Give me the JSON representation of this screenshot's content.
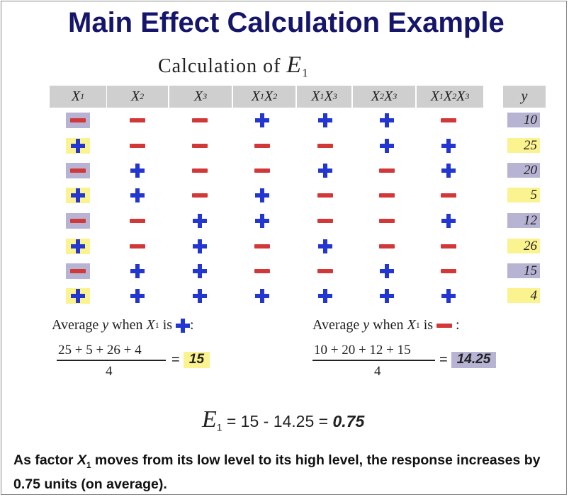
{
  "title": "Main Effect Calculation Example",
  "subtitle": {
    "prefix": "Calculation of",
    "symbol": "E",
    "sub": "1"
  },
  "columns": [
    [
      {
        "v": "X",
        "s": "1"
      }
    ],
    [
      {
        "v": "X",
        "s": "2"
      }
    ],
    [
      {
        "v": "X",
        "s": "3"
      }
    ],
    [
      {
        "v": "X",
        "s": "1"
      },
      {
        "v": " X",
        "s": "2"
      }
    ],
    [
      {
        "v": "X",
        "s": "1"
      },
      {
        "v": " X",
        "s": "3"
      }
    ],
    [
      {
        "v": "X",
        "s": "2"
      },
      {
        "v": " X",
        "s": "3"
      }
    ],
    [
      {
        "v": "X",
        "s": "1"
      },
      {
        "v": "X",
        "s": "2"
      },
      {
        "v": "X",
        "s": "3"
      }
    ]
  ],
  "response_header": "y",
  "rows": [
    {
      "signs": [
        "-",
        "-",
        "-",
        "+",
        "+",
        "+",
        "-"
      ],
      "y": "10"
    },
    {
      "signs": [
        "+",
        "-",
        "-",
        "-",
        "-",
        "+",
        "+"
      ],
      "y": "25"
    },
    {
      "signs": [
        "-",
        "+",
        "-",
        "-",
        "+",
        "-",
        "+"
      ],
      "y": "20"
    },
    {
      "signs": [
        "+",
        "+",
        "-",
        "+",
        "-",
        "-",
        "-"
      ],
      "y": "5"
    },
    {
      "signs": [
        "-",
        "-",
        "+",
        "+",
        "-",
        "-",
        "+"
      ],
      "y": "12"
    },
    {
      "signs": [
        "+",
        "-",
        "+",
        "-",
        "+",
        "-",
        "-"
      ],
      "y": "26"
    },
    {
      "signs": [
        "-",
        "+",
        "+",
        "-",
        "-",
        "+",
        "-"
      ],
      "y": "15"
    },
    {
      "signs": [
        "+",
        "+",
        "+",
        "+",
        "+",
        "+",
        "+"
      ],
      "y": "4"
    }
  ],
  "average_plus": {
    "prefix": "Average",
    "var": "y",
    "when": "when",
    "factor": "X",
    "factor_sub": "1",
    "is": "is",
    "colon": ":",
    "numerator": "25 + 5 + 26 + 4",
    "denominator": "4",
    "eq": "=",
    "result": "15"
  },
  "average_minus": {
    "prefix": "Average",
    "var": "y",
    "when": "when",
    "factor": "X",
    "factor_sub": "1",
    "is": "is",
    "colon": ":",
    "numerator": "10 + 20 + 12 + 15",
    "denominator": "4",
    "eq": "=",
    "result": "14.25"
  },
  "final_equation": {
    "symbol": "E",
    "sub": "1",
    "expression": "= 15 - 14.25 =",
    "answer": "0.75"
  },
  "conclusion": {
    "part1": "As factor",
    "factor": "X",
    "factor_sub": "1",
    "part2": "moves from its low level to its high level, the response increases by 0.75 units (on average)."
  },
  "colors": {
    "title": "#15166b",
    "plus": "#2436d0",
    "minus": "#d23838",
    "highlight_low": "#b6b3d3",
    "highlight_high": "#fbf38f",
    "header_bg": "#cfcfcf"
  }
}
